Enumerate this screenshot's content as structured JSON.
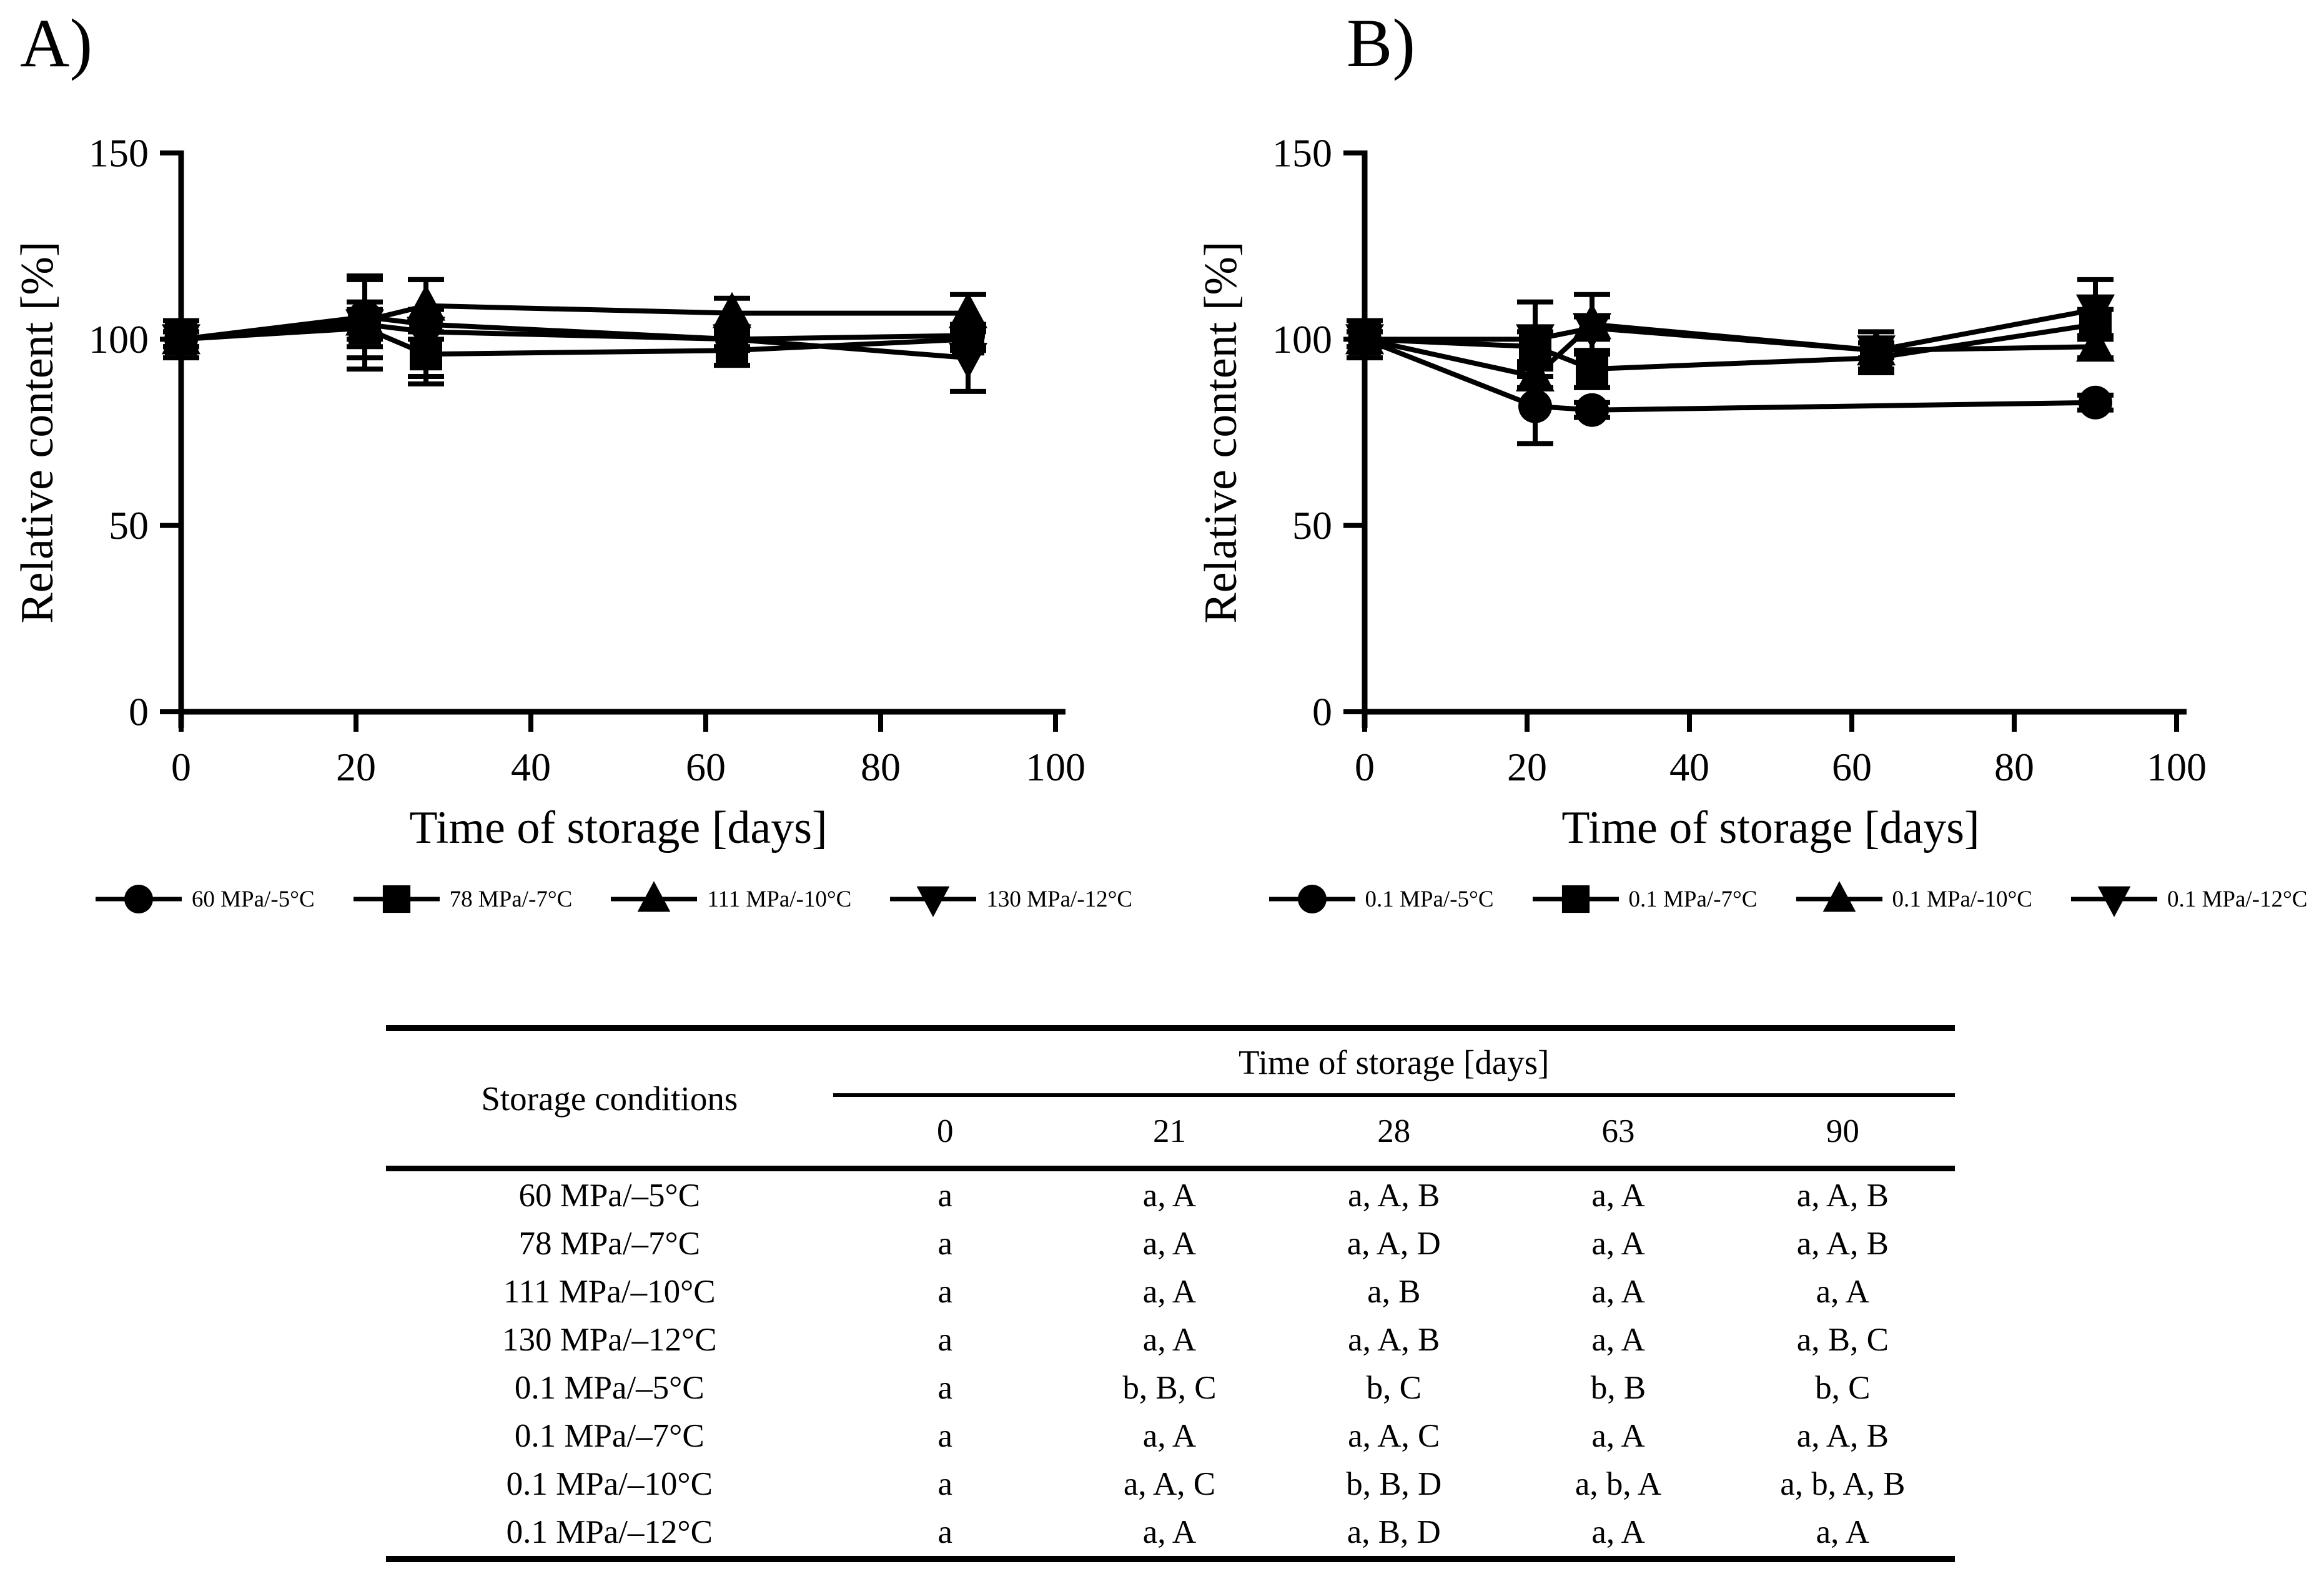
{
  "page": {
    "background": "#ffffff",
    "ink": "#000000"
  },
  "chart_data": [
    {
      "panel_label": "A)",
      "type": "line",
      "xlabel": "Time of storage [days]",
      "ylabel": "Relative content [%]",
      "xlim": [
        0,
        100
      ],
      "ylim": [
        0,
        150
      ],
      "xticks": [
        0,
        20,
        40,
        60,
        80,
        100
      ],
      "yticks": [
        0,
        50,
        100,
        150
      ],
      "grid": false,
      "legend_position": "bottom",
      "series": [
        {
          "name": "60 MPa/-5°C",
          "marker": "circle",
          "x": [
            0,
            21,
            28,
            63,
            90
          ],
          "y": [
            100,
            106,
            104,
            100,
            101
          ],
          "yerr": [
            2,
            11,
            4,
            2,
            3
          ]
        },
        {
          "name": "78 MPa/-7°C",
          "marker": "square",
          "x": [
            0,
            21,
            28,
            63,
            90
          ],
          "y": [
            100,
            103,
            96,
            97,
            100
          ],
          "yerr": [
            5,
            5,
            6,
            4,
            3
          ]
        },
        {
          "name": "111 MPa/-10°C",
          "marker": "triangle-up",
          "x": [
            0,
            21,
            28,
            63,
            90
          ],
          "y": [
            100,
            105,
            109,
            107,
            107
          ],
          "yerr": [
            2,
            5,
            7,
            4,
            5
          ]
        },
        {
          "name": "130 MPa/-12°C",
          "marker": "triangle-down",
          "x": [
            0,
            21,
            28,
            63,
            90
          ],
          "y": [
            100,
            104,
            102,
            100,
            95
          ],
          "yerr": [
            2,
            12,
            14,
            3,
            9
          ]
        }
      ]
    },
    {
      "panel_label": "B)",
      "type": "line",
      "xlabel": "Time of storage [days]",
      "ylabel": "Relative content [%]",
      "xlim": [
        0,
        100
      ],
      "ylim": [
        0,
        150
      ],
      "xticks": [
        0,
        20,
        40,
        60,
        80,
        100
      ],
      "yticks": [
        0,
        50,
        100,
        150
      ],
      "grid": false,
      "legend_position": "bottom",
      "series": [
        {
          "name": "0.1 MPa/-5°C",
          "marker": "circle",
          "x": [
            0,
            21,
            28,
            90
          ],
          "y": [
            100,
            82,
            81,
            83
          ],
          "yerr": [
            2,
            10,
            2,
            2
          ]
        },
        {
          "name": "0.1 MPa/-7°C",
          "marker": "square",
          "x": [
            0,
            21,
            28,
            63,
            90
          ],
          "y": [
            100,
            98,
            92,
            95,
            104
          ],
          "yerr": [
            5,
            4,
            5,
            4,
            4
          ]
        },
        {
          "name": "0.1 MPa/-10°C",
          "marker": "triangle-up",
          "x": [
            0,
            21,
            28,
            63,
            90
          ],
          "y": [
            100,
            90,
            104,
            97,
            98
          ],
          "yerr": [
            2,
            3,
            8,
            2,
            3
          ]
        },
        {
          "name": "0.1 MPa/-12°C",
          "marker": "triangle-down",
          "x": [
            0,
            21,
            28,
            63,
            90
          ],
          "y": [
            100,
            100,
            103,
            97,
            108
          ],
          "yerr": [
            2,
            10,
            3,
            5,
            8
          ]
        }
      ]
    }
  ],
  "table": {
    "col1_header": "Storage conditions",
    "span_header": "Time of storage [days]",
    "day_columns": [
      "0",
      "21",
      "28",
      "63",
      "90"
    ],
    "rows": [
      {
        "condition": "60 MPa/–5°C",
        "cells": [
          "a",
          "a, A",
          "a, A, B",
          "a, A",
          "a, A, B"
        ]
      },
      {
        "condition": "78 MPa/–7°C",
        "cells": [
          "a",
          "a, A",
          "a, A, D",
          "a, A",
          "a, A, B"
        ]
      },
      {
        "condition": "111 MPa/–10°C",
        "cells": [
          "a",
          "a, A",
          "a, B",
          "a, A",
          "a, A"
        ]
      },
      {
        "condition": "130 MPa/–12°C",
        "cells": [
          "a",
          "a, A",
          "a, A, B",
          "a, A",
          "a, B, C"
        ]
      },
      {
        "condition": "0.1 MPa/–5°C",
        "cells": [
          "a",
          "b, B, C",
          "b, C",
          "b, B",
          "b, C"
        ]
      },
      {
        "condition": "0.1 MPa/–7°C",
        "cells": [
          "a",
          "a, A",
          "a, A, C",
          "a, A",
          "a, A, B"
        ]
      },
      {
        "condition": "0.1 MPa/–10°C",
        "cells": [
          "a",
          "a, A, C",
          "b, B, D",
          "a, b, A",
          "a, b, A, B"
        ]
      },
      {
        "condition": "0.1 MPa/–12°C",
        "cells": [
          "a",
          "a, A",
          "a, B, D",
          "a, A",
          "a, A"
        ]
      }
    ]
  }
}
